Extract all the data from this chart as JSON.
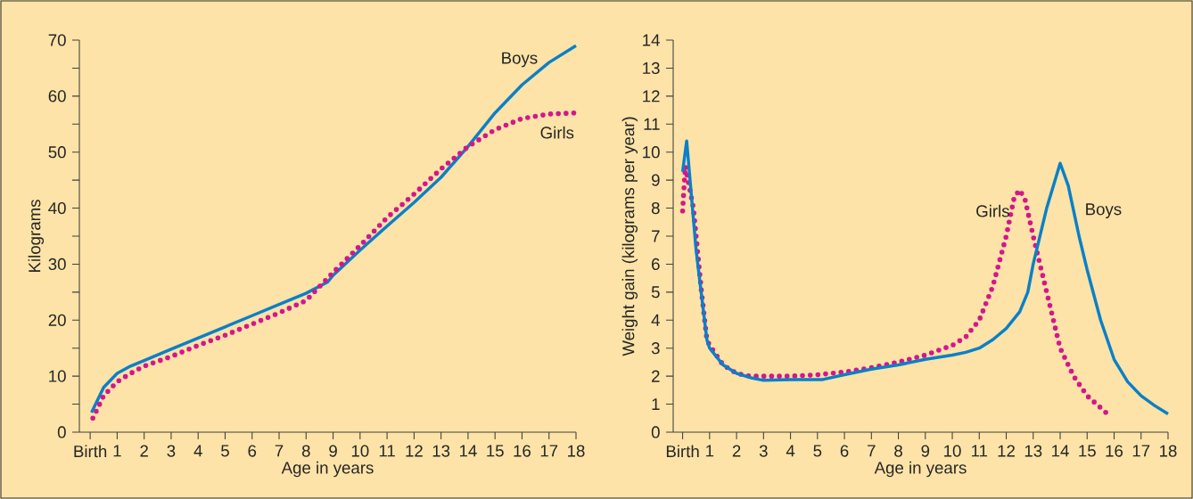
{
  "chart_data": [
    {
      "type": "line",
      "xlabel": "Age in years",
      "ylabel": "Kilograms",
      "xlim": [
        -0.4,
        18
      ],
      "ylim": [
        0,
        70
      ],
      "xticks": [
        {
          "value": 0,
          "label": "Birth"
        },
        1,
        2,
        3,
        4,
        5,
        6,
        7,
        8,
        9,
        10,
        11,
        12,
        13,
        14,
        15,
        16,
        17,
        18
      ],
      "yticks": [
        0,
        {
          "value": 5,
          "label": null
        },
        10,
        {
          "value": 15,
          "label": null
        },
        20,
        {
          "value": 25,
          "label": null
        },
        30,
        {
          "value": 35,
          "label": null
        },
        40,
        {
          "value": 45,
          "label": null
        },
        50,
        {
          "value": 55,
          "label": null
        },
        60,
        {
          "value": 65,
          "label": null
        },
        70
      ],
      "grid": false,
      "series": [
        {
          "name": "Boys",
          "color": "#0a80c8",
          "line_style": "solid",
          "x": [
            0.05,
            0.5,
            1,
            1.5,
            2,
            3,
            4,
            5,
            6,
            7,
            8,
            8.8,
            9,
            10,
            11,
            12,
            13,
            14,
            15,
            16,
            17,
            18
          ],
          "values": [
            3.5,
            8,
            10.5,
            11.8,
            12.8,
            14.8,
            16.8,
            18.8,
            20.8,
            22.8,
            24.8,
            26.8,
            28,
            32.5,
            36.8,
            41,
            45.5,
            51,
            57,
            62,
            66,
            69
          ]
        },
        {
          "name": "Girls",
          "color": "#d4168c",
          "line_style": "dotted",
          "x": [
            0.1,
            0.5,
            1,
            1.5,
            2,
            3,
            4,
            5,
            6,
            7,
            8,
            9,
            10,
            11,
            12,
            13,
            14,
            15,
            16,
            17,
            18
          ],
          "values": [
            2.5,
            6.5,
            9,
            10.5,
            11.8,
            13.5,
            15.5,
            17.3,
            19.3,
            21.3,
            23.5,
            28.5,
            33.3,
            38.3,
            42.5,
            47,
            51,
            54,
            56,
            56.8,
            57
          ]
        }
      ]
    },
    {
      "type": "line",
      "xlabel": "Age in years",
      "ylabel": "Weight gain (kilograms per year)",
      "xlim": [
        -0.35,
        18
      ],
      "ylim": [
        0,
        14
      ],
      "xticks": [
        {
          "value": 0,
          "label": "Birth"
        },
        1,
        2,
        3,
        4,
        5,
        6,
        7,
        8,
        9,
        10,
        11,
        12,
        13,
        14,
        15,
        16,
        17,
        18
      ],
      "yticks": [
        0,
        1,
        2,
        3,
        4,
        5,
        6,
        7,
        8,
        9,
        10,
        11,
        12,
        13,
        14
      ],
      "grid": false,
      "series": [
        {
          "name": "Girls",
          "color": "#d4168c",
          "line_style": "dotted",
          "x": [
            0,
            0.1,
            0.4,
            0.7,
            0.9,
            1,
            1.5,
            2,
            2.5,
            3,
            4,
            5,
            6,
            7,
            8,
            9,
            10,
            10.5,
            11,
            11.5,
            12,
            12.3,
            12.5,
            12.7,
            13,
            13.5,
            14,
            14.5,
            15,
            15.7
          ],
          "values": [
            7.9,
            9.5,
            8,
            5,
            3.3,
            3.1,
            2.4,
            2.1,
            2,
            2,
            2,
            2.05,
            2.15,
            2.3,
            2.5,
            2.75,
            3.1,
            3.4,
            4,
            5.2,
            7,
            8.4,
            8.65,
            8.3,
            7,
            5,
            3,
            2,
            1.3,
            0.7
          ]
        },
        {
          "name": "Boys",
          "color": "#0a80c8",
          "line_style": "solid",
          "x": [
            0,
            0.15,
            0.5,
            0.9,
            1,
            1.5,
            2,
            2.5,
            3,
            4,
            5.2,
            6,
            7,
            8,
            9,
            10,
            10.5,
            11,
            11.5,
            12,
            12.5,
            12.8,
            13,
            13.5,
            14,
            14.3,
            14.7,
            15,
            15.5,
            16,
            16.5,
            17,
            17.5,
            18
          ],
          "values": [
            9.3,
            10.4,
            6.5,
            3.3,
            3,
            2.4,
            2.1,
            1.95,
            1.85,
            1.88,
            1.88,
            2.05,
            2.25,
            2.4,
            2.6,
            2.75,
            2.85,
            3,
            3.3,
            3.7,
            4.3,
            5,
            6,
            8,
            9.6,
            8.8,
            7,
            5.8,
            4,
            2.6,
            1.8,
            1.3,
            0.95,
            0.65
          ]
        }
      ]
    }
  ]
}
